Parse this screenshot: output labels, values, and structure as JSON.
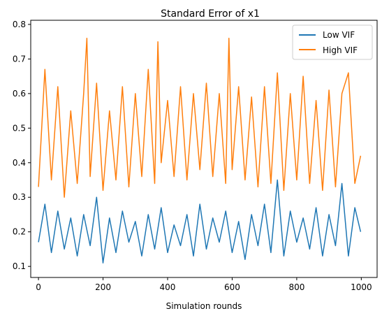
{
  "chart_data": {
    "type": "line",
    "title": "Standard Error of x1",
    "xlabel": "Simulation rounds",
    "ylabel": "",
    "xlim": [
      -24,
      1049
    ],
    "ylim": [
      0.068,
      0.812
    ],
    "x_ticks": [
      0,
      200,
      400,
      600,
      800,
      1000
    ],
    "x_tick_labels": [
      "0",
      "200",
      "400",
      "600",
      "800",
      "1000"
    ],
    "y_ticks": [
      0.1,
      0.2,
      0.3,
      0.4,
      0.5,
      0.6,
      0.7,
      0.8
    ],
    "y_tick_labels": [
      "0.1",
      "0.2",
      "0.3",
      "0.4",
      "0.5",
      "0.6",
      "0.7",
      "0.8"
    ],
    "grid": false,
    "legend_position": "upper-right",
    "series": [
      {
        "name": "Low VIF",
        "color": "#1f77b4",
        "x": [
          0,
          20,
          40,
          60,
          80,
          100,
          120,
          140,
          160,
          180,
          200,
          220,
          240,
          260,
          280,
          300,
          320,
          340,
          360,
          380,
          400,
          420,
          440,
          460,
          480,
          500,
          520,
          540,
          560,
          580,
          600,
          620,
          640,
          660,
          680,
          700,
          720,
          740,
          760,
          780,
          800,
          820,
          840,
          860,
          880,
          900,
          920,
          940,
          960,
          980,
          998
        ],
        "y": [
          0.17,
          0.28,
          0.14,
          0.26,
          0.15,
          0.24,
          0.13,
          0.25,
          0.16,
          0.3,
          0.11,
          0.24,
          0.14,
          0.26,
          0.17,
          0.23,
          0.13,
          0.25,
          0.15,
          0.27,
          0.14,
          0.22,
          0.16,
          0.25,
          0.13,
          0.28,
          0.15,
          0.24,
          0.17,
          0.26,
          0.14,
          0.23,
          0.12,
          0.25,
          0.16,
          0.28,
          0.14,
          0.35,
          0.13,
          0.26,
          0.17,
          0.24,
          0.15,
          0.27,
          0.13,
          0.25,
          0.16,
          0.34,
          0.13,
          0.27,
          0.2
        ]
      },
      {
        "name": "High VIF",
        "color": "#ff7f0e",
        "x": [
          0,
          20,
          40,
          60,
          80,
          100,
          120,
          140,
          150,
          160,
          180,
          200,
          220,
          240,
          260,
          280,
          300,
          320,
          340,
          360,
          370,
          380,
          400,
          420,
          440,
          460,
          480,
          500,
          520,
          540,
          560,
          580,
          590,
          600,
          620,
          640,
          660,
          680,
          700,
          720,
          740,
          760,
          780,
          800,
          820,
          840,
          860,
          880,
          900,
          920,
          940,
          960,
          980,
          998
        ],
        "y": [
          0.33,
          0.67,
          0.35,
          0.62,
          0.3,
          0.55,
          0.34,
          0.6,
          0.76,
          0.36,
          0.63,
          0.32,
          0.55,
          0.35,
          0.62,
          0.33,
          0.6,
          0.36,
          0.67,
          0.34,
          0.75,
          0.4,
          0.58,
          0.36,
          0.62,
          0.35,
          0.6,
          0.38,
          0.63,
          0.36,
          0.6,
          0.34,
          0.76,
          0.38,
          0.62,
          0.35,
          0.59,
          0.33,
          0.62,
          0.34,
          0.66,
          0.32,
          0.6,
          0.35,
          0.65,
          0.34,
          0.58,
          0.32,
          0.61,
          0.33,
          0.6,
          0.66,
          0.34,
          0.42
        ]
      }
    ]
  }
}
